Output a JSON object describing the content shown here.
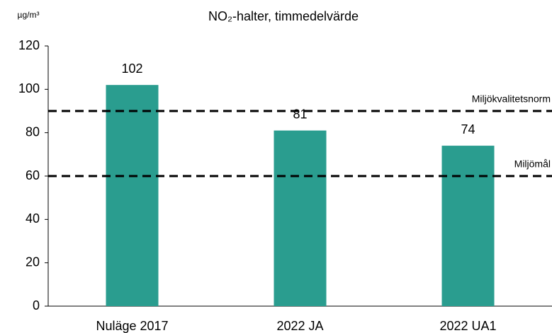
{
  "chart_data": {
    "type": "bar",
    "title": "NO₂-halter, timmedelvärde",
    "y_label": "µg/m³",
    "categories": [
      "Nuläge 2017",
      "2022 JA",
      "2022 UA1"
    ],
    "values": [
      102,
      81,
      74
    ],
    "color": "#2a9d8f",
    "ylim": [
      0,
      120
    ],
    "yticks": [
      0,
      20,
      40,
      60,
      80,
      100,
      120
    ],
    "grid": false,
    "reference_lines": [
      {
        "value": 90,
        "label": "Miljökvalitetsnorm"
      },
      {
        "value": 60,
        "label": "Miljömål"
      }
    ]
  }
}
